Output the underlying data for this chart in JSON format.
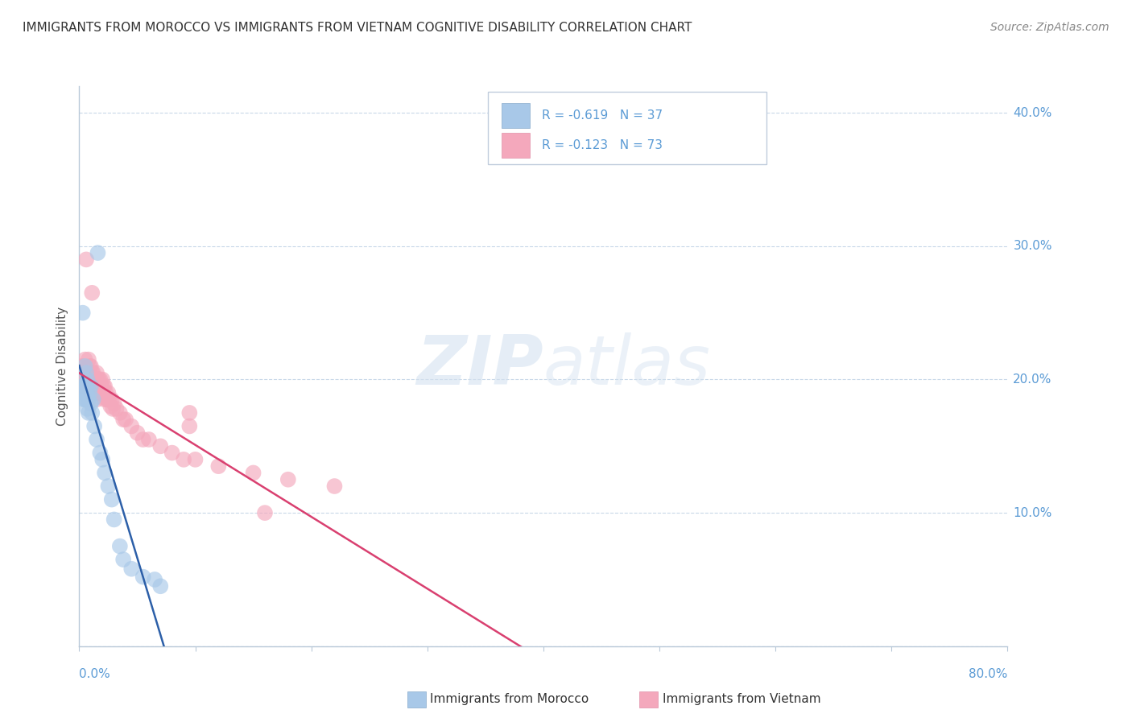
{
  "title": "IMMIGRANTS FROM MOROCCO VS IMMIGRANTS FROM VIETNAM COGNITIVE DISABILITY CORRELATION CHART",
  "source": "Source: ZipAtlas.com",
  "ylabel": "Cognitive Disability",
  "watermark": "ZIPatlas",
  "morocco_R": -0.619,
  "morocco_N": 37,
  "vietnam_R": -0.123,
  "vietnam_N": 73,
  "morocco_color": "#a8c8e8",
  "vietnam_color": "#f4a8bc",
  "morocco_line_color": "#2c5fa8",
  "vietnam_line_color": "#d94070",
  "axis_color": "#5b9bd5",
  "grid_color": "#c8d8e8",
  "background_color": "#ffffff",
  "morocco_x": [
    0.002,
    0.003,
    0.003,
    0.004,
    0.004,
    0.005,
    0.005,
    0.005,
    0.006,
    0.006,
    0.006,
    0.007,
    0.007,
    0.007,
    0.008,
    0.008,
    0.008,
    0.009,
    0.01,
    0.01,
    0.011,
    0.012,
    0.013,
    0.015,
    0.016,
    0.018,
    0.02,
    0.022,
    0.025,
    0.028,
    0.03,
    0.035,
    0.038,
    0.045,
    0.055,
    0.065,
    0.07
  ],
  "morocco_y": [
    0.195,
    0.19,
    0.25,
    0.195,
    0.185,
    0.21,
    0.195,
    0.185,
    0.205,
    0.195,
    0.185,
    0.2,
    0.188,
    0.178,
    0.195,
    0.185,
    0.175,
    0.19,
    0.195,
    0.182,
    0.175,
    0.185,
    0.165,
    0.155,
    0.295,
    0.145,
    0.14,
    0.13,
    0.12,
    0.11,
    0.095,
    0.075,
    0.065,
    0.058,
    0.052,
    0.05,
    0.045
  ],
  "vietnam_x": [
    0.002,
    0.003,
    0.003,
    0.004,
    0.004,
    0.005,
    0.005,
    0.005,
    0.006,
    0.006,
    0.006,
    0.007,
    0.007,
    0.008,
    0.008,
    0.008,
    0.009,
    0.009,
    0.01,
    0.01,
    0.01,
    0.011,
    0.011,
    0.011,
    0.012,
    0.012,
    0.013,
    0.013,
    0.014,
    0.014,
    0.015,
    0.015,
    0.015,
    0.016,
    0.016,
    0.017,
    0.017,
    0.018,
    0.018,
    0.019,
    0.02,
    0.02,
    0.021,
    0.022,
    0.022,
    0.023,
    0.024,
    0.025,
    0.025,
    0.026,
    0.027,
    0.028,
    0.029,
    0.03,
    0.032,
    0.035,
    0.038,
    0.04,
    0.045,
    0.05,
    0.055,
    0.06,
    0.07,
    0.08,
    0.09,
    0.1,
    0.12,
    0.15,
    0.18,
    0.22,
    0.095,
    0.095,
    0.16
  ],
  "vietnam_y": [
    0.21,
    0.205,
    0.195,
    0.21,
    0.2,
    0.215,
    0.205,
    0.195,
    0.29,
    0.205,
    0.195,
    0.205,
    0.195,
    0.215,
    0.205,
    0.195,
    0.21,
    0.2,
    0.21,
    0.2,
    0.19,
    0.265,
    0.205,
    0.195,
    0.205,
    0.195,
    0.2,
    0.19,
    0.2,
    0.19,
    0.205,
    0.195,
    0.185,
    0.2,
    0.19,
    0.2,
    0.19,
    0.2,
    0.19,
    0.195,
    0.2,
    0.19,
    0.195,
    0.195,
    0.185,
    0.19,
    0.185,
    0.19,
    0.185,
    0.185,
    0.18,
    0.185,
    0.178,
    0.182,
    0.178,
    0.175,
    0.17,
    0.17,
    0.165,
    0.16,
    0.155,
    0.155,
    0.15,
    0.145,
    0.14,
    0.14,
    0.135,
    0.13,
    0.125,
    0.12,
    0.175,
    0.165,
    0.1
  ],
  "xlim": [
    0.0,
    0.8
  ],
  "ylim": [
    0.0,
    0.42
  ],
  "ytick_vals": [
    0.0,
    0.1,
    0.2,
    0.3,
    0.4
  ],
  "ytick_labels_right": [
    "",
    "10.0%",
    "20.0%",
    "30.0%",
    "40.0%"
  ],
  "xtick_minor_count": 8
}
